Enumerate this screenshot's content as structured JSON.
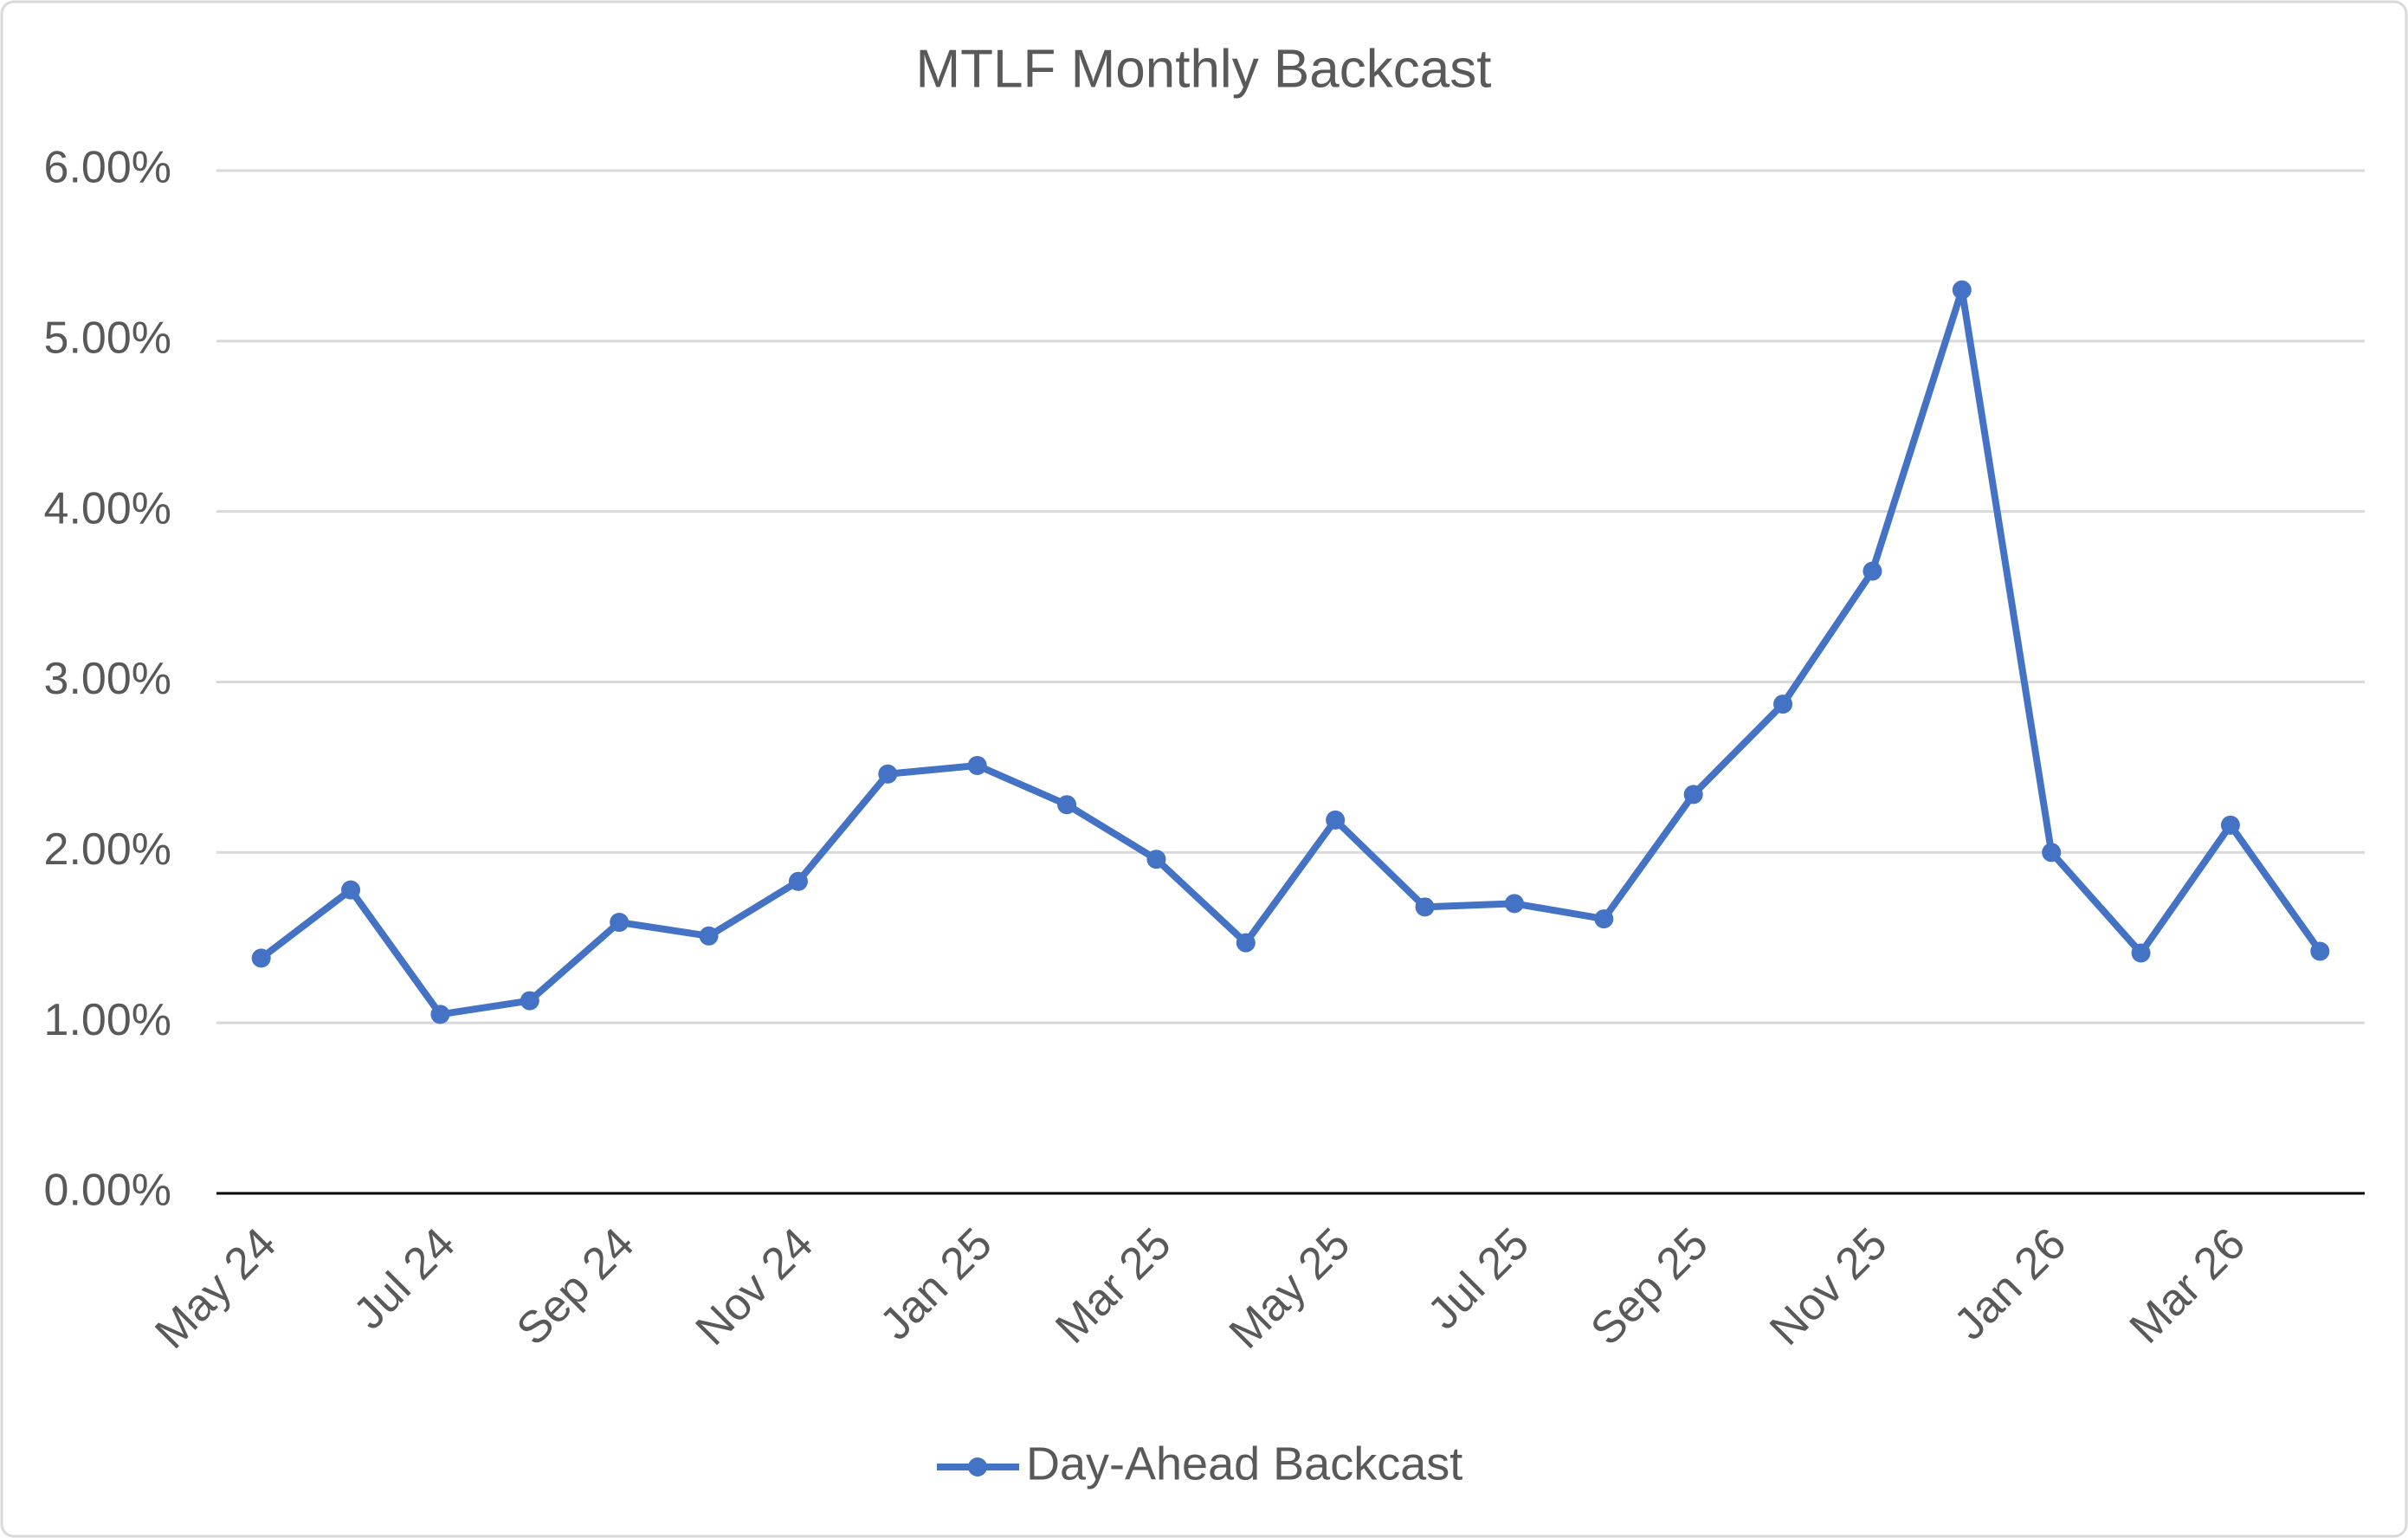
{
  "chart_data": {
    "type": "line",
    "title": "MTLF Monthly Backcast",
    "categories": [
      "May 24",
      null,
      "Jul 24",
      null,
      "Sep 24",
      null,
      "Nov 24",
      null,
      "Jan 25",
      null,
      "Mar 25",
      null,
      "May 25",
      null,
      "Jul 25",
      null,
      "Sep 25",
      null,
      "Nov 25",
      null,
      "Jan 26",
      null,
      "Mar 26",
      null
    ],
    "series": [
      {
        "name": "Day-Ahead Backcast",
        "color": "#4472c4",
        "values": [
          1.38,
          1.78,
          1.05,
          1.13,
          1.59,
          1.51,
          1.83,
          2.46,
          2.51,
          2.28,
          1.96,
          1.47,
          2.19,
          1.68,
          1.7,
          1.61,
          2.34,
          2.87,
          3.65,
          5.3,
          2.0,
          1.41,
          2.16,
          1.42
        ]
      }
    ],
    "ylim": [
      0,
      6
    ],
    "yticks": [
      {
        "value": 0,
        "label": "0.00%"
      },
      {
        "value": 1,
        "label": "1.00%"
      },
      {
        "value": 2,
        "label": "2.00%"
      },
      {
        "value": 3,
        "label": "3.00%"
      },
      {
        "value": 4,
        "label": "4.00%"
      },
      {
        "value": 5,
        "label": "5.00%"
      },
      {
        "value": 6,
        "label": "6.00%"
      }
    ],
    "grid": true,
    "legend": "bottom"
  }
}
